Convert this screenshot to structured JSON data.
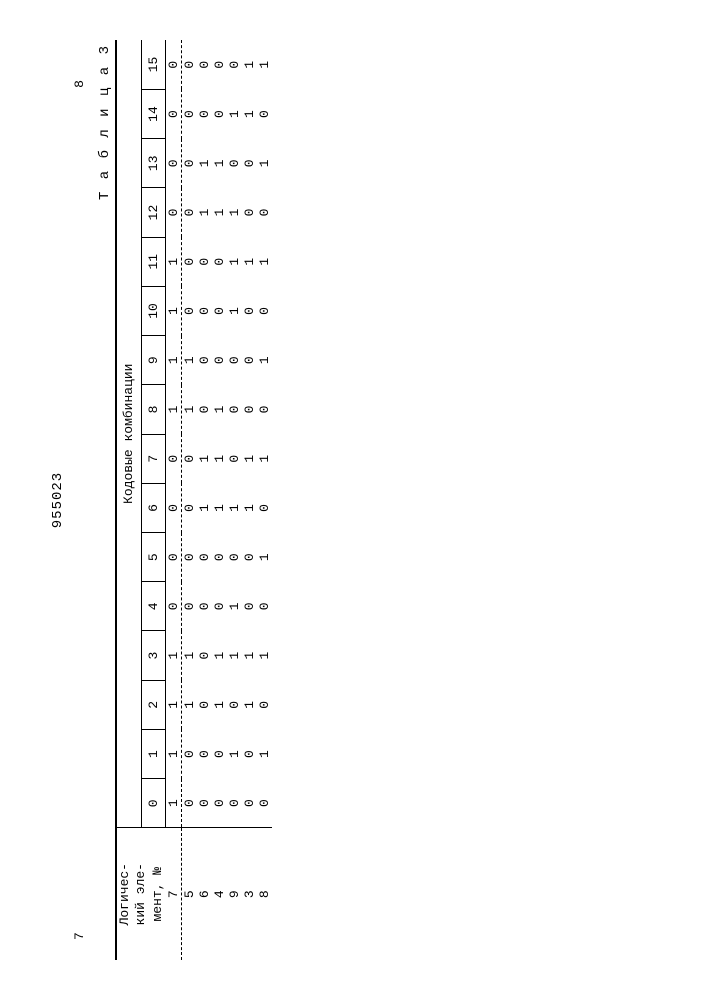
{
  "doc_id": "955023",
  "page_left": "7",
  "page_right": "8",
  "caption": "Т а б л и ц а  3",
  "row_header_lines": [
    "Логичес-",
    "кий эле-",
    "мент, №"
  ],
  "group_header": "Кодовые комбинации",
  "columns": [
    "0",
    "1",
    "2",
    "3",
    "4",
    "5",
    "6",
    "7",
    "8",
    "9",
    "10",
    "11",
    "12",
    "13",
    "14",
    "15"
  ],
  "rows": [
    {
      "label": "7",
      "vals": [
        "1",
        "1",
        "1",
        "1",
        "0",
        "0",
        "0",
        "0",
        "1",
        "1",
        "1",
        "1",
        "0",
        "0",
        "0",
        "0"
      ]
    },
    {
      "label": "5",
      "vals": [
        "0",
        "0",
        "1",
        "1",
        "0",
        "0",
        "0",
        "0",
        "1",
        "1",
        "0",
        "0",
        "0",
        "0",
        "0",
        "0"
      ]
    },
    {
      "label": "6",
      "vals": [
        "0",
        "0",
        "0",
        "0",
        "0",
        "0",
        "1",
        "1",
        "0",
        "0",
        "0",
        "0",
        "1",
        "1",
        "0",
        "0"
      ]
    },
    {
      "label": "4",
      "vals": [
        "0",
        "0",
        "1",
        "1",
        "0",
        "0",
        "1",
        "1",
        "1",
        "0",
        "0",
        "0",
        "1",
        "1",
        "0",
        "0"
      ]
    },
    {
      "label": "9",
      "vals": [
        "0",
        "1",
        "0",
        "1",
        "1",
        "0",
        "1",
        "0",
        "0",
        "0",
        "1",
        "1",
        "1",
        "0",
        "1",
        "0"
      ]
    },
    {
      "label": "3",
      "vals": [
        "0",
        "0",
        "1",
        "1",
        "0",
        "0",
        "1",
        "1",
        "0",
        "0",
        "0",
        "1",
        "0",
        "0",
        "1",
        "1"
      ]
    },
    {
      "label": "8",
      "vals": [
        "0",
        "1",
        "0",
        "1",
        "0",
        "1",
        "0",
        "1",
        "0",
        "1",
        "0",
        "1",
        "0",
        "1",
        "0",
        "1"
      ]
    }
  ]
}
